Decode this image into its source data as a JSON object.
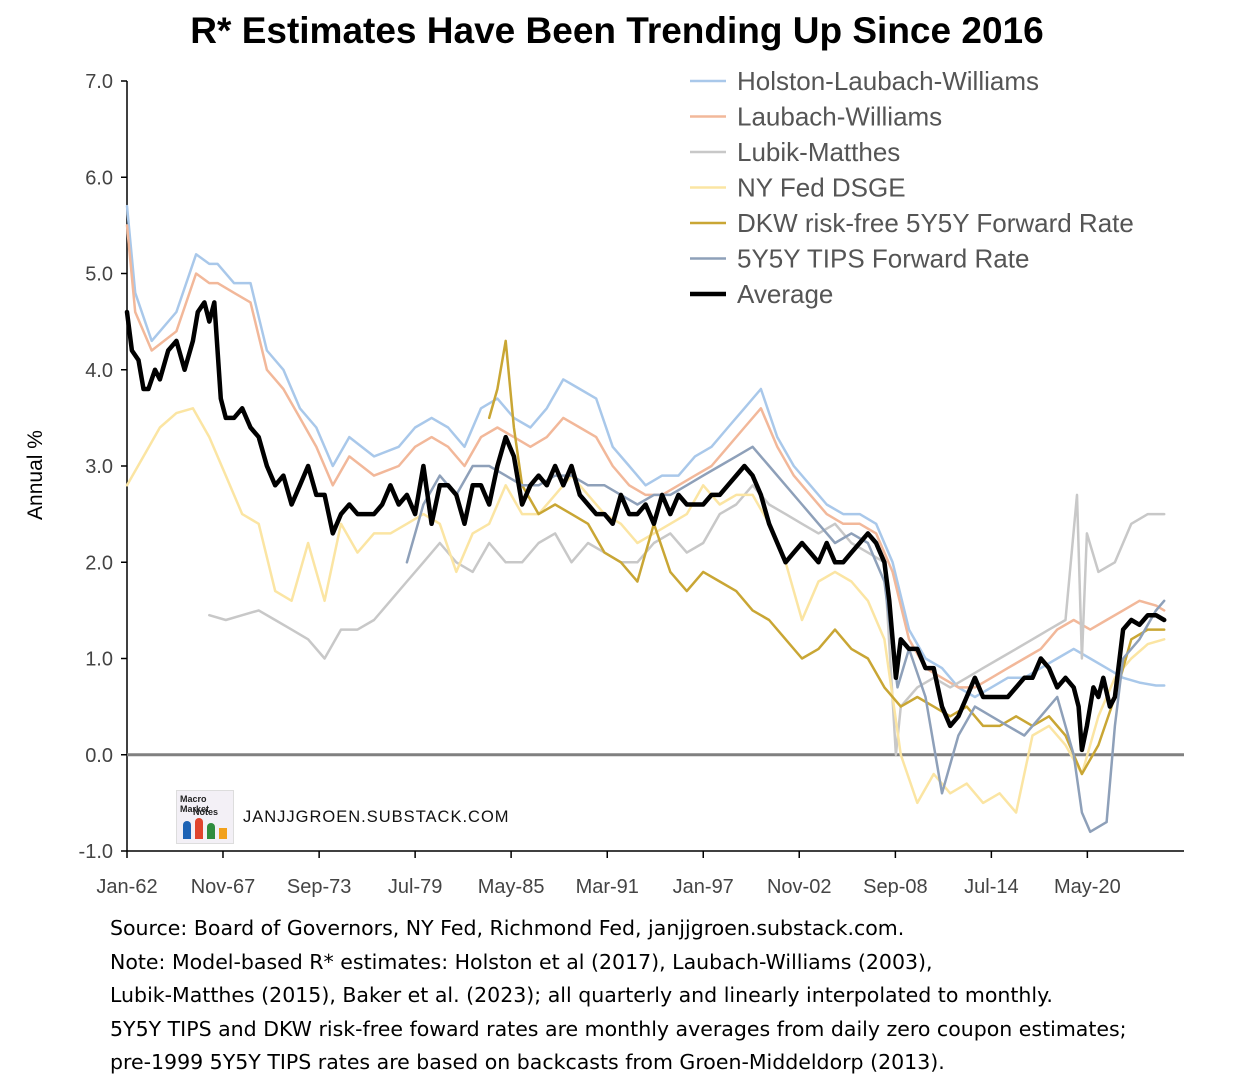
{
  "chart_data": {
    "type": "line",
    "title": "R* Estimates Have Been Trending Up Since 2016",
    "ylabel": "Annual %",
    "xlabel": "",
    "ylim": [
      -1.0,
      7.0
    ],
    "yticks": [
      "-1.0",
      "0.0",
      "1.0",
      "2.0",
      "3.0",
      "4.0",
      "5.0",
      "6.0",
      "7.0"
    ],
    "xlim": [
      1962.0,
      2026.2
    ],
    "xticks": [
      {
        "label": "Jan-62",
        "x": 1962.0
      },
      {
        "label": "Nov-67",
        "x": 1967.83
      },
      {
        "label": "Sep-73",
        "x": 1973.67
      },
      {
        "label": "Jul-79",
        "x": 1979.5
      },
      {
        "label": "May-85",
        "x": 1985.33
      },
      {
        "label": "Mar-91",
        "x": 1991.17
      },
      {
        "label": "Jan-97",
        "x": 1997.0
      },
      {
        "label": "Nov-02",
        "x": 2002.83
      },
      {
        "label": "Sep-08",
        "x": 2008.67
      },
      {
        "label": "Jul-14",
        "x": 2014.5
      },
      {
        "label": "May-20",
        "x": 2020.33
      }
    ],
    "grid": false,
    "legend_position": "top-right",
    "zero_line": true,
    "series": [
      {
        "name": "Holston-Laubach-Williams",
        "color": "#a9c8ea",
        "width": 2.5,
        "x": [
          1962.0,
          1962.5,
          1963.5,
          1965.0,
          1966.2,
          1967.0,
          1967.5,
          1968.5,
          1969.5,
          1970.5,
          1971.5,
          1972.5,
          1973.5,
          1974.5,
          1975.5,
          1977.0,
          1978.5,
          1979.5,
          1980.5,
          1981.5,
          1982.5,
          1983.5,
          1984.5,
          1985.5,
          1986.5,
          1987.5,
          1988.5,
          1989.5,
          1990.5,
          1991.5,
          1992.5,
          1993.5,
          1994.5,
          1995.5,
          1996.5,
          1997.5,
          1998.5,
          1999.5,
          2000.5,
          2001.5,
          2002.5,
          2003.5,
          2004.5,
          2005.5,
          2006.5,
          2007.5,
          2008.5,
          2009.5,
          2010.5,
          2011.5,
          2012.5,
          2013.5,
          2014.5,
          2015.5,
          2016.5,
          2017.5,
          2018.5,
          2019.5,
          2020.5,
          2021.5,
          2022.5,
          2023.5,
          2024.5,
          2025.0
        ],
        "y": [
          5.7,
          4.8,
          4.3,
          4.6,
          5.2,
          5.1,
          5.1,
          4.9,
          4.9,
          4.2,
          4.0,
          3.6,
          3.4,
          3.0,
          3.3,
          3.1,
          3.2,
          3.4,
          3.5,
          3.4,
          3.2,
          3.6,
          3.7,
          3.5,
          3.4,
          3.6,
          3.9,
          3.8,
          3.7,
          3.2,
          3.0,
          2.8,
          2.9,
          2.9,
          3.1,
          3.2,
          3.4,
          3.6,
          3.8,
          3.3,
          3.0,
          2.8,
          2.6,
          2.5,
          2.5,
          2.4,
          2.0,
          1.3,
          1.0,
          0.9,
          0.7,
          0.6,
          0.7,
          0.8,
          0.8,
          0.9,
          1.0,
          1.1,
          1.0,
          0.9,
          0.8,
          0.75,
          0.72,
          0.72
        ]
      },
      {
        "name": "Laubach-Williams",
        "color": "#f2b89a",
        "width": 2.5,
        "x": [
          1962.0,
          1962.5,
          1963.5,
          1965.0,
          1966.2,
          1967.0,
          1967.5,
          1968.5,
          1969.5,
          1970.5,
          1971.5,
          1972.5,
          1973.5,
          1974.5,
          1975.5,
          1977.0,
          1978.5,
          1979.5,
          1980.5,
          1981.5,
          1982.5,
          1983.5,
          1984.5,
          1985.5,
          1986.5,
          1987.5,
          1988.5,
          1989.5,
          1990.5,
          1991.5,
          1992.5,
          1993.5,
          1994.5,
          1995.5,
          1996.5,
          1997.5,
          1998.5,
          1999.5,
          2000.5,
          2001.5,
          2002.5,
          2003.5,
          2004.5,
          2005.5,
          2006.5,
          2007.5,
          2008.5,
          2009.5,
          2010.5,
          2011.5,
          2012.5,
          2013.5,
          2014.5,
          2015.5,
          2016.5,
          2017.5,
          2018.5,
          2019.5,
          2020.5,
          2021.5,
          2022.5,
          2023.5,
          2024.5,
          2025.0
        ],
        "y": [
          5.5,
          4.6,
          4.2,
          4.4,
          5.0,
          4.9,
          4.9,
          4.8,
          4.7,
          4.0,
          3.8,
          3.5,
          3.2,
          2.8,
          3.1,
          2.9,
          3.0,
          3.2,
          3.3,
          3.2,
          3.0,
          3.3,
          3.4,
          3.3,
          3.2,
          3.3,
          3.5,
          3.4,
          3.3,
          3.0,
          2.8,
          2.7,
          2.7,
          2.8,
          2.9,
          3.0,
          3.2,
          3.4,
          3.6,
          3.2,
          2.9,
          2.7,
          2.5,
          2.4,
          2.4,
          2.3,
          1.9,
          1.2,
          0.9,
          0.8,
          0.7,
          0.7,
          0.8,
          0.9,
          1.0,
          1.1,
          1.3,
          1.4,
          1.3,
          1.4,
          1.5,
          1.6,
          1.55,
          1.5
        ]
      },
      {
        "name": "Lubik-Matthes",
        "color": "#c8c8c8",
        "width": 2.5,
        "x": [
          1967.0,
          1968.0,
          1969.0,
          1970.0,
          1971.0,
          1972.0,
          1973.0,
          1974.0,
          1975.0,
          1976.0,
          1977.0,
          1978.0,
          1979.0,
          1980.0,
          1981.0,
          1982.0,
          1983.0,
          1984.0,
          1985.0,
          1986.0,
          1987.0,
          1988.0,
          1989.0,
          1990.0,
          1991.0,
          1992.0,
          1993.0,
          1994.0,
          1995.0,
          1996.0,
          1997.0,
          1998.0,
          1999.0,
          2000.0,
          2001.0,
          2002.0,
          2003.0,
          2004.0,
          2005.0,
          2006.0,
          2007.0,
          2008.0,
          2008.7,
          2009.0,
          2010.0,
          2011.0,
          2012.0,
          2013.0,
          2014.0,
          2015.0,
          2016.0,
          2017.0,
          2018.0,
          2019.0,
          2019.7,
          2020.0,
          2020.3,
          2021.0,
          2022.0,
          2023.0,
          2024.0,
          2025.0
        ],
        "y": [
          1.45,
          1.4,
          1.45,
          1.5,
          1.4,
          1.3,
          1.2,
          1.0,
          1.3,
          1.3,
          1.4,
          1.6,
          1.8,
          2.0,
          2.2,
          2.0,
          1.9,
          2.2,
          2.0,
          2.0,
          2.2,
          2.3,
          2.0,
          2.2,
          2.1,
          2.0,
          2.0,
          2.2,
          2.3,
          2.1,
          2.2,
          2.5,
          2.6,
          2.8,
          2.6,
          2.5,
          2.4,
          2.3,
          2.4,
          2.2,
          2.1,
          2.0,
          0.0,
          0.5,
          0.7,
          0.8,
          0.7,
          0.8,
          0.9,
          1.0,
          1.1,
          1.2,
          1.3,
          1.4,
          2.7,
          1.0,
          2.3,
          1.9,
          2.0,
          2.4,
          2.5,
          2.5
        ]
      },
      {
        "name": "NY Fed DSGE",
        "color": "#fbe5a3",
        "width": 2.5,
        "x": [
          1962.0,
          1963.0,
          1964.0,
          1965.0,
          1966.0,
          1967.0,
          1968.0,
          1969.0,
          1970.0,
          1971.0,
          1972.0,
          1973.0,
          1974.0,
          1975.0,
          1976.0,
          1977.0,
          1978.0,
          1979.0,
          1980.0,
          1981.0,
          1982.0,
          1983.0,
          1984.0,
          1985.0,
          1986.0,
          1987.0,
          1988.0,
          1989.0,
          1990.0,
          1991.0,
          1992.0,
          1993.0,
          1994.0,
          1995.0,
          1996.0,
          1997.0,
          1998.0,
          1999.0,
          2000.0,
          2001.0,
          2002.0,
          2003.0,
          2004.0,
          2005.0,
          2006.0,
          2007.0,
          2008.0,
          2009.0,
          2010.0,
          2011.0,
          2012.0,
          2013.0,
          2014.0,
          2015.0,
          2016.0,
          2017.0,
          2018.0,
          2019.0,
          2020.0,
          2021.0,
          2022.0,
          2023.0,
          2024.0,
          2025.0
        ],
        "y": [
          2.8,
          3.1,
          3.4,
          3.55,
          3.6,
          3.3,
          2.9,
          2.5,
          2.4,
          1.7,
          1.6,
          2.2,
          1.6,
          2.4,
          2.1,
          2.3,
          2.3,
          2.4,
          2.5,
          2.4,
          1.9,
          2.3,
          2.4,
          2.8,
          2.5,
          2.5,
          2.7,
          2.9,
          2.7,
          2.5,
          2.4,
          2.2,
          2.3,
          2.4,
          2.5,
          2.8,
          2.6,
          2.7,
          2.7,
          2.4,
          2.0,
          1.4,
          1.8,
          1.9,
          1.8,
          1.6,
          1.2,
          0.0,
          -0.5,
          -0.2,
          -0.4,
          -0.3,
          -0.5,
          -0.4,
          -0.6,
          0.2,
          0.3,
          0.1,
          -0.2,
          0.4,
          0.8,
          1.0,
          1.15,
          1.2
        ]
      },
      {
        "name": "DKW risk-free 5Y5Y Forward Rate",
        "color": "#c9a634",
        "width": 2.5,
        "x": [
          1984.0,
          1984.5,
          1985.0,
          1985.5,
          1986.0,
          1987.0,
          1988.0,
          1989.0,
          1990.0,
          1991.0,
          1992.0,
          1993.0,
          1994.0,
          1995.0,
          1996.0,
          1997.0,
          1998.0,
          1999.0,
          2000.0,
          2001.0,
          2002.0,
          2003.0,
          2004.0,
          2005.0,
          2006.0,
          2007.0,
          2008.0,
          2009.0,
          2010.0,
          2011.0,
          2012.0,
          2013.0,
          2014.0,
          2015.0,
          2016.0,
          2017.0,
          2018.0,
          2019.0,
          2020.0,
          2021.0,
          2022.0,
          2023.0,
          2024.0,
          2025.0
        ],
        "y": [
          3.5,
          3.8,
          4.3,
          3.4,
          2.8,
          2.5,
          2.6,
          2.5,
          2.4,
          2.1,
          2.0,
          1.8,
          2.4,
          1.9,
          1.7,
          1.9,
          1.8,
          1.7,
          1.5,
          1.4,
          1.2,
          1.0,
          1.1,
          1.3,
          1.1,
          1.0,
          0.7,
          0.5,
          0.6,
          0.5,
          0.4,
          0.5,
          0.3,
          0.3,
          0.4,
          0.3,
          0.4,
          0.2,
          -0.2,
          0.1,
          0.6,
          1.2,
          1.3,
          1.3
        ]
      },
      {
        "name": "5Y5Y TIPS Forward Rate",
        "color": "#8ea0b9",
        "width": 2.5,
        "x": [
          1979.0,
          1980.0,
          1981.0,
          1982.0,
          1983.0,
          1984.0,
          1985.0,
          1986.0,
          1987.0,
          1988.0,
          1989.0,
          1990.0,
          1991.0,
          1992.0,
          1993.0,
          1994.0,
          1995.0,
          1996.0,
          1997.0,
          1998.0,
          1999.0,
          2000.0,
          2001.0,
          2002.0,
          2003.0,
          2004.0,
          2005.0,
          2006.0,
          2007.0,
          2008.0,
          2008.8,
          2009.5,
          2010.5,
          2011.5,
          2012.5,
          2013.5,
          2014.5,
          2015.5,
          2016.5,
          2017.5,
          2018.5,
          2019.5,
          2020.0,
          2020.5,
          2021.5,
          2022.0,
          2022.5,
          2023.5,
          2024.5,
          2025.0
        ],
        "y": [
          2.0,
          2.6,
          2.9,
          2.7,
          3.0,
          3.0,
          2.9,
          2.8,
          2.8,
          2.9,
          2.9,
          2.8,
          2.8,
          2.7,
          2.6,
          2.7,
          2.7,
          2.8,
          2.9,
          3.0,
          3.1,
          3.2,
          3.0,
          2.8,
          2.6,
          2.4,
          2.2,
          2.3,
          2.2,
          1.8,
          0.7,
          1.1,
          0.6,
          -0.4,
          0.2,
          0.5,
          0.4,
          0.3,
          0.2,
          0.4,
          0.6,
          0.0,
          -0.6,
          -0.8,
          -0.7,
          0.3,
          1.0,
          1.2,
          1.5,
          1.6
        ]
      },
      {
        "name": "Average",
        "color": "#000000",
        "width": 4.5,
        "x": [
          1962.0,
          1962.3,
          1962.7,
          1963.0,
          1963.3,
          1963.7,
          1964.0,
          1964.5,
          1965.0,
          1965.5,
          1966.0,
          1966.3,
          1966.7,
          1967.0,
          1967.3,
          1967.7,
          1968.0,
          1968.5,
          1969.0,
          1969.5,
          1970.0,
          1970.5,
          1971.0,
          1971.5,
          1972.0,
          1972.5,
          1973.0,
          1973.5,
          1974.0,
          1974.5,
          1975.0,
          1975.5,
          1976.0,
          1976.5,
          1977.0,
          1977.5,
          1978.0,
          1978.5,
          1979.0,
          1979.5,
          1980.0,
          1980.5,
          1981.0,
          1981.5,
          1982.0,
          1982.5,
          1983.0,
          1983.5,
          1984.0,
          1984.5,
          1985.0,
          1985.5,
          1986.0,
          1986.5,
          1987.0,
          1987.5,
          1988.0,
          1988.5,
          1989.0,
          1989.5,
          1990.0,
          1990.5,
          1991.0,
          1991.5,
          1992.0,
          1992.5,
          1993.0,
          1993.5,
          1994.0,
          1994.5,
          1995.0,
          1995.5,
          1996.0,
          1996.5,
          1997.0,
          1997.5,
          1998.0,
          1998.5,
          1999.0,
          1999.5,
          2000.0,
          2000.5,
          2001.0,
          2001.5,
          2002.0,
          2002.5,
          2003.0,
          2003.5,
          2004.0,
          2004.5,
          2005.0,
          2005.5,
          2006.0,
          2006.5,
          2007.0,
          2007.5,
          2008.0,
          2008.3,
          2008.7,
          2009.0,
          2009.5,
          2010.0,
          2010.5,
          2011.0,
          2011.5,
          2012.0,
          2012.5,
          2013.0,
          2013.5,
          2014.0,
          2014.5,
          2015.0,
          2015.5,
          2016.0,
          2016.5,
          2017.0,
          2017.5,
          2018.0,
          2018.5,
          2019.0,
          2019.5,
          2019.8,
          2020.0,
          2020.3,
          2020.7,
          2021.0,
          2021.3,
          2021.7,
          2022.0,
          2022.5,
          2023.0,
          2023.5,
          2024.0,
          2024.5,
          2025.0
        ],
        "y": [
          4.6,
          4.2,
          4.1,
          3.8,
          3.8,
          4.0,
          3.9,
          4.2,
          4.3,
          4.0,
          4.3,
          4.6,
          4.7,
          4.5,
          4.7,
          3.7,
          3.5,
          3.5,
          3.6,
          3.4,
          3.3,
          3.0,
          2.8,
          2.9,
          2.6,
          2.8,
          3.0,
          2.7,
          2.7,
          2.3,
          2.5,
          2.6,
          2.5,
          2.5,
          2.5,
          2.6,
          2.8,
          2.6,
          2.7,
          2.5,
          3.0,
          2.4,
          2.8,
          2.8,
          2.7,
          2.4,
          2.8,
          2.8,
          2.6,
          3.0,
          3.3,
          3.1,
          2.6,
          2.8,
          2.9,
          2.8,
          3.0,
          2.8,
          3.0,
          2.7,
          2.6,
          2.5,
          2.5,
          2.4,
          2.7,
          2.5,
          2.5,
          2.6,
          2.4,
          2.7,
          2.5,
          2.7,
          2.6,
          2.6,
          2.6,
          2.7,
          2.7,
          2.8,
          2.9,
          3.0,
          2.9,
          2.7,
          2.4,
          2.2,
          2.0,
          2.1,
          2.2,
          2.1,
          2.0,
          2.2,
          2.0,
          2.0,
          2.1,
          2.2,
          2.3,
          2.2,
          2.0,
          1.6,
          0.8,
          1.2,
          1.1,
          1.1,
          0.9,
          0.9,
          0.5,
          0.3,
          0.4,
          0.6,
          0.8,
          0.6,
          0.6,
          0.6,
          0.6,
          0.7,
          0.8,
          0.8,
          1.0,
          0.9,
          0.7,
          0.8,
          0.7,
          0.5,
          0.05,
          0.3,
          0.7,
          0.6,
          0.8,
          0.5,
          0.6,
          1.3,
          1.4,
          1.35,
          1.45,
          1.45,
          1.4
        ]
      }
    ]
  },
  "watermark": "JANJJGROEN.SUBSTACK.COM",
  "logo_text": {
    "line1": "Macro Market",
    "line2": "Notes"
  },
  "notes": [
    "Source: Board of Governors, NY Fed, Richmond Fed, janjjgroen.substack.com.",
    "Note: Model-based R* estimates: Holston et al (2017), Laubach-Williams (2003),",
    "Lubik-Matthes (2015), Baker et al. (2023); all quarterly and linearly interpolated to monthly.",
    "5Y5Y TIPS and DKW risk-free foward rates are monthly averages from daily zero coupon estimates;",
    "pre-1999 5Y5Y TIPS rates are based on backcasts from Groen-Middeldorp (2013)."
  ]
}
